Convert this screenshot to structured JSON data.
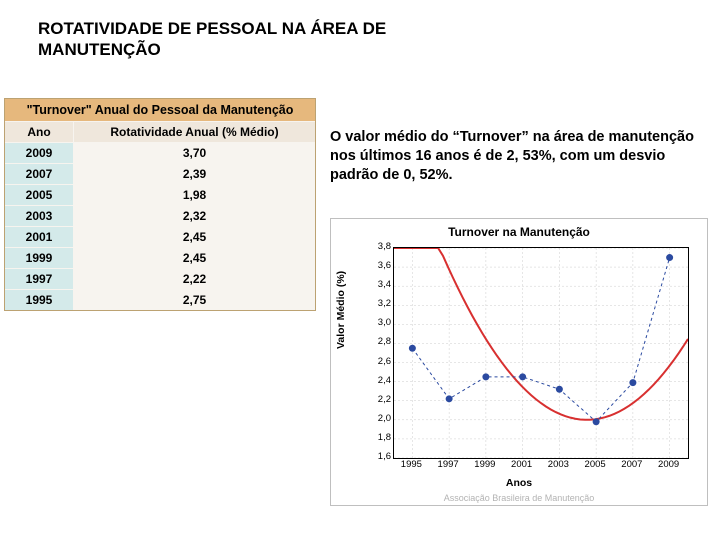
{
  "title": "ROTATIVIDADE DE PESSOAL NA ÁREA DE MANUTENÇÃO",
  "table": {
    "title": "\"Turnover\" Anual do Pessoal da Manutenção",
    "columns": [
      "Ano",
      "Rotatividade Anual (% Médio)"
    ],
    "rows": [
      {
        "year": "2009",
        "value": "3,70"
      },
      {
        "year": "2007",
        "value": "2,39"
      },
      {
        "year": "2005",
        "value": "1,98"
      },
      {
        "year": "2003",
        "value": "2,32"
      },
      {
        "year": "2001",
        "value": "2,45"
      },
      {
        "year": "1999",
        "value": "2,45"
      },
      {
        "year": "1997",
        "value": "2,22"
      },
      {
        "year": "1995",
        "value": "2,75"
      }
    ],
    "header_bg": "#e6b87d",
    "subheader_bg": "#efe7dc",
    "year_bg": "#d4eaea",
    "value_bg": "#f7f4ef",
    "border_color": "#bca272"
  },
  "caption": "O valor médio do “Turnover” na área de manutenção nos últimos 16 anos é de 2, 53%, com um desvio padrão de 0, 52%.",
  "chart": {
    "title": "Turnover na Manutenção",
    "type": "line+scatter",
    "xlabel": "Anos",
    "ylabel": "Valor Médio (%)",
    "xlim": [
      1994,
      2010
    ],
    "ylim": [
      1.6,
      3.8
    ],
    "yticks": [
      1.6,
      1.8,
      2.0,
      2.2,
      2.4,
      2.6,
      2.8,
      3.0,
      3.2,
      3.4,
      3.6,
      3.8
    ],
    "ytick_labels": [
      "1,6",
      "1,8",
      "2,0",
      "2,2",
      "2,4",
      "2,6",
      "2,8",
      "3,0",
      "3,2",
      "3,4",
      "3,6",
      "3,8"
    ],
    "xticks": [
      1995,
      1997,
      1999,
      2001,
      2003,
      2005,
      2007,
      2009
    ],
    "points": [
      {
        "x": 1995,
        "y": 2.75
      },
      {
        "x": 1997,
        "y": 2.22
      },
      {
        "x": 1999,
        "y": 2.45
      },
      {
        "x": 2001,
        "y": 2.45
      },
      {
        "x": 2003,
        "y": 2.32
      },
      {
        "x": 2005,
        "y": 1.98
      },
      {
        "x": 2007,
        "y": 2.39
      },
      {
        "x": 2009,
        "y": 3.7
      }
    ],
    "point_color": "#2b4aa0",
    "point_radius": 3.5,
    "connector_color": "#2b4aa0",
    "curve_color": "#d83030",
    "grid_color": "#cccccc",
    "background_color": "#ffffff",
    "footer": "Associação Brasileira de Manutenção"
  }
}
